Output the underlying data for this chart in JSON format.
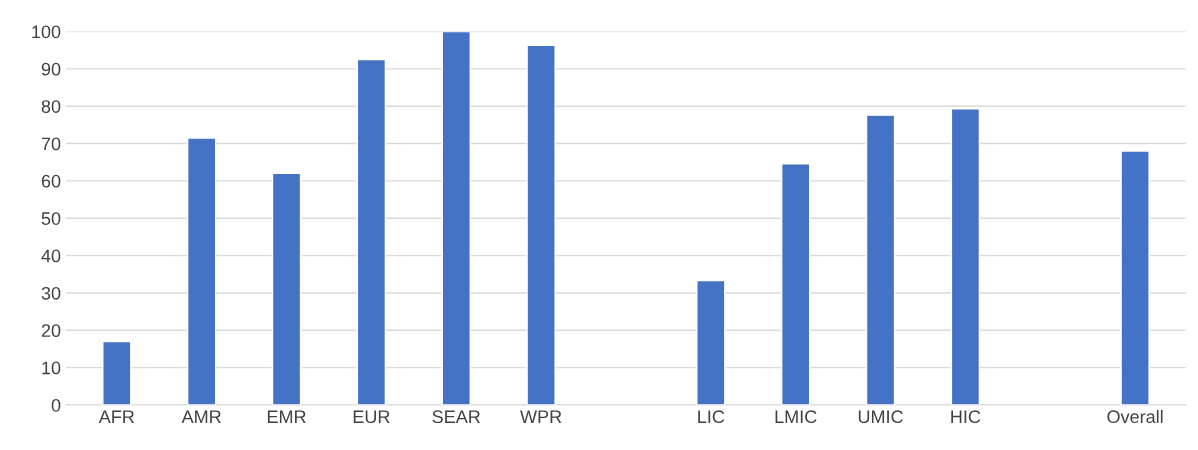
{
  "chart_data": {
    "type": "bar",
    "categories": [
      "AFR",
      "AMR",
      "EMR",
      "EUR",
      "SEAR",
      "WPR",
      null,
      "LIC",
      "LMIC",
      "UMIC",
      "HIC",
      null,
      "Overall"
    ],
    "values": [
      17,
      71.5,
      62,
      92.5,
      100,
      96.3,
      null,
      33.3,
      64.6,
      77.6,
      79.3,
      null,
      68
    ],
    "color": "#4472c4",
    "ylim": [
      0,
      100
    ],
    "yticks": [
      0,
      10,
      20,
      30,
      40,
      50,
      60,
      70,
      80,
      90,
      100
    ],
    "grid": "y"
  }
}
